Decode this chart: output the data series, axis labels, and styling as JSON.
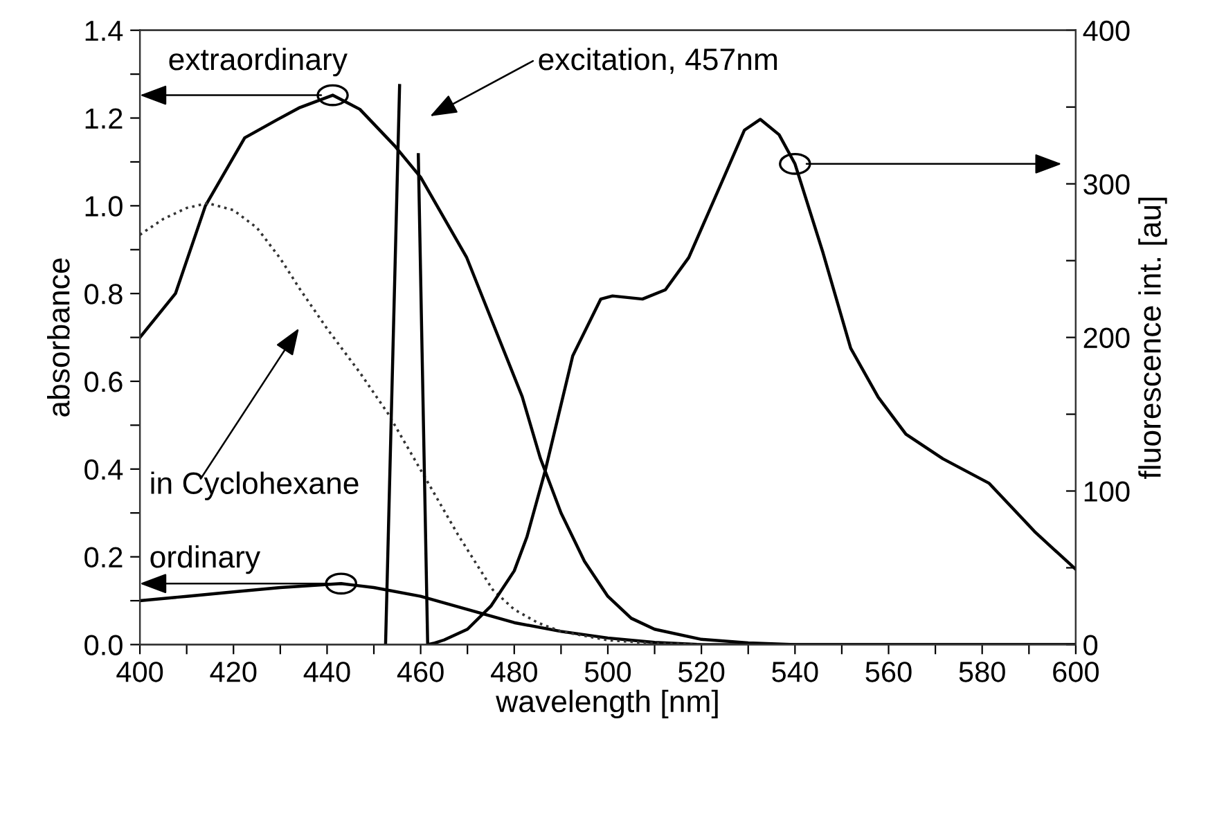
{
  "chart_data": {
    "type": "line",
    "xlabel": "wavelength [nm]",
    "ylabel": "absorbance",
    "y2label": "fluorescence int. [au]",
    "xlim": [
      400,
      600
    ],
    "xticks": [
      400,
      {
        "value": 410,
        "label": null
      },
      420,
      {
        "value": 430,
        "label": null
      },
      440,
      {
        "value": 450,
        "label": null
      },
      460,
      {
        "value": 470,
        "label": null
      },
      480,
      {
        "value": 490,
        "label": null
      },
      500,
      {
        "value": 510,
        "label": null
      },
      520,
      {
        "value": 530,
        "label": null
      },
      540,
      {
        "value": 550,
        "label": null
      },
      560,
      {
        "value": 570,
        "label": null
      },
      580,
      {
        "value": 590,
        "label": null
      },
      600
    ],
    "ylim": [
      0,
      1.4
    ],
    "yticks": [
      {
        "value": 0,
        "label": "0.0"
      },
      {
        "value": 0.1,
        "label": null
      },
      {
        "value": 0.2,
        "label": "0.2"
      },
      {
        "value": 0.3,
        "label": null
      },
      {
        "value": 0.4,
        "label": "0.4"
      },
      {
        "value": 0.5,
        "label": null
      },
      {
        "value": 0.6,
        "label": "0.6"
      },
      {
        "value": 0.7,
        "label": null
      },
      {
        "value": 0.8,
        "label": "0.8"
      },
      {
        "value": 0.9,
        "label": null
      },
      {
        "value": 1.0,
        "label": "1.0"
      },
      {
        "value": 1.1,
        "label": null
      },
      {
        "value": 1.2,
        "label": "1.2"
      },
      {
        "value": 1.3,
        "label": null
      },
      {
        "value": 1.4,
        "label": "1.4"
      }
    ],
    "y2lim": [
      0,
      400
    ],
    "y2ticks": [
      0,
      {
        "value": 50,
        "label": null
      },
      100,
      {
        "value": 150,
        "label": null
      },
      200,
      {
        "value": 250,
        "label": null
      },
      300,
      {
        "value": 350,
        "label": null
      },
      400
    ],
    "grid": false,
    "legend": false,
    "marker": "none",
    "annotations": [
      "excitation, 457nm"
    ],
    "series": [
      {
        "name": "extraordinary",
        "color": "#000000",
        "line_style": "solid",
        "x": [
          400,
          407.6,
          414,
          422.4,
          429.3,
          434.2,
          441.2,
          447,
          454.5,
          460,
          469.8,
          481.7,
          485.6,
          490,
          495,
          500,
          505,
          510,
          520,
          530,
          540,
          560,
          580,
          600
        ],
        "values": [
          0.7,
          0.8,
          1.0,
          1.155,
          1.196,
          1.224,
          1.252,
          1.22,
          1.136,
          1.065,
          0.883,
          0.565,
          0.424,
          0.3,
          0.19,
          0.11,
          0.06,
          0.035,
          0.012,
          0.004,
          0,
          0,
          0,
          0
        ]
      },
      {
        "name": "ordinary",
        "color": "#000000",
        "line_style": "solid",
        "x": [
          400,
          410,
          420,
          430,
          443,
          450,
          460,
          470,
          480,
          490,
          500,
          510,
          520,
          540,
          560,
          580,
          600
        ],
        "values": [
          0.1,
          0.11,
          0.12,
          0.13,
          0.139,
          0.13,
          0.11,
          0.08,
          0.05,
          0.03,
          0.015,
          0.005,
          0,
          0,
          0,
          0,
          0
        ]
      },
      {
        "name": "in Cyclohexane",
        "color": "#333333",
        "line_style": "dotted",
        "x": [
          400,
          405,
          410,
          414.5,
          420,
          425,
          430,
          434.2,
          440,
          447,
          453,
          460.6,
          468,
          475.4,
          480,
          485,
          490,
          500,
          510,
          520
        ],
        "values": [
          0.934,
          0.97,
          0.995,
          1.006,
          0.99,
          0.95,
          0.88,
          0.81,
          0.72,
          0.62,
          0.527,
          0.387,
          0.25,
          0.125,
          0.08,
          0.05,
          0.03,
          0.01,
          0.003,
          0
        ]
      },
      {
        "color": "#000000",
        "line_style": "solid",
        "axis": "y2",
        "x": [
          452.5,
          455.5,
          457,
          459.5,
          461.5,
          463,
          465,
          470,
          475,
          480,
          482.7,
          486.6,
          492.5,
          498.5,
          501,
          507.4,
          512.3,
          517.3,
          524.2,
          529.2,
          532.6,
          536.6,
          540,
          546,
          551.9,
          557.8,
          563.7,
          571.6,
          581.5,
          591.4,
          600
        ],
        "values": [
          0,
          364,
          null,
          319,
          0,
          1,
          3,
          10,
          25,
          48,
          70,
          113,
          188,
          225,
          227,
          225,
          231,
          252,
          300,
          335,
          342,
          332,
          313,
          255,
          193,
          161,
          137,
          121,
          105,
          73,
          49
        ]
      }
    ]
  }
}
